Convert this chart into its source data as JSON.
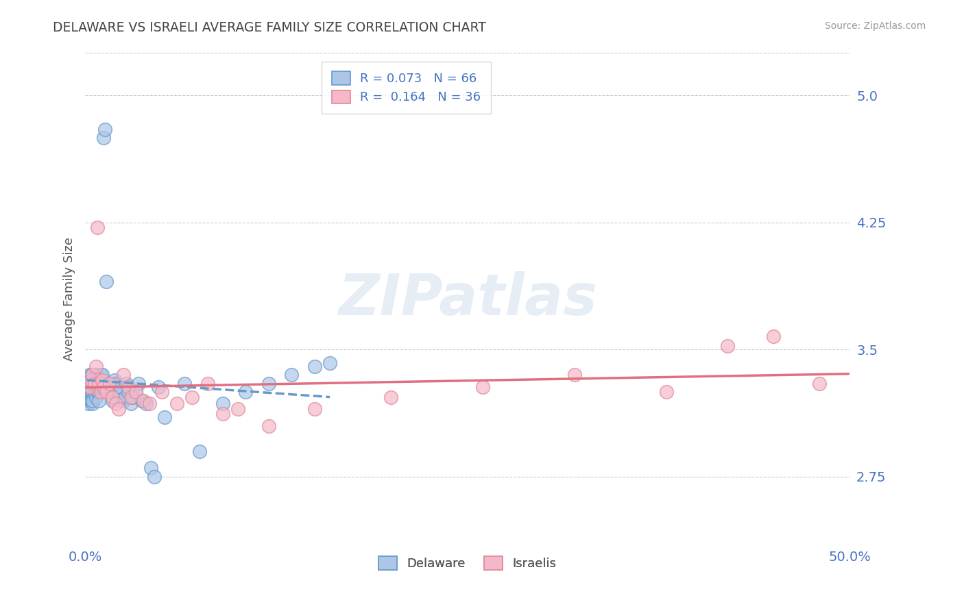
{
  "title": "DELAWARE VS ISRAELI AVERAGE FAMILY SIZE CORRELATION CHART",
  "source": "Source: ZipAtlas.com",
  "xlabel": "",
  "ylabel": "Average Family Size",
  "xlim": [
    0.0,
    0.5
  ],
  "ylim": [
    2.35,
    5.25
  ],
  "yticks": [
    2.75,
    3.5,
    4.25,
    5.0
  ],
  "xticks": [
    0.0,
    0.5
  ],
  "xtick_labels": [
    "0.0%",
    "50.0%"
  ],
  "background_color": "#ffffff",
  "grid_color": "#cccccc",
  "title_color": "#444444",
  "axis_label_color": "#555555",
  "tick_color": "#4472c4",
  "watermark": "ZIPatlas",
  "delaware_color": "#adc6e8",
  "israeli_color": "#f4b8c8",
  "delaware_edge": "#6699cc",
  "israeli_edge": "#e08898",
  "delaware_line_color": "#6699cc",
  "israeli_line_color": "#e07080",
  "R_delaware": 0.073,
  "N_delaware": 66,
  "R_israeli": 0.164,
  "N_israeli": 36,
  "legend_label_delaware": "Delaware",
  "legend_label_israeli": "Israelis",
  "delaware_x": [
    0.001,
    0.002,
    0.002,
    0.003,
    0.003,
    0.003,
    0.004,
    0.004,
    0.004,
    0.004,
    0.005,
    0.005,
    0.005,
    0.005,
    0.005,
    0.005,
    0.006,
    0.006,
    0.006,
    0.007,
    0.007,
    0.007,
    0.008,
    0.008,
    0.008,
    0.009,
    0.009,
    0.009,
    0.009,
    0.01,
    0.01,
    0.01,
    0.011,
    0.011,
    0.012,
    0.013,
    0.014,
    0.015,
    0.017,
    0.018,
    0.019,
    0.02,
    0.022,
    0.023,
    0.025,
    0.026,
    0.027,
    0.028,
    0.03,
    0.031,
    0.033,
    0.035,
    0.037,
    0.04,
    0.043,
    0.045,
    0.048,
    0.052,
    0.065,
    0.075,
    0.09,
    0.105,
    0.12,
    0.135,
    0.15,
    0.16
  ],
  "delaware_y": [
    3.3,
    3.18,
    3.25,
    3.35,
    3.28,
    3.2,
    3.32,
    3.2,
    3.35,
    3.25,
    3.3,
    3.22,
    3.3,
    3.25,
    3.18,
    3.2,
    3.32,
    3.28,
    3.25,
    3.35,
    3.3,
    3.22,
    3.32,
    3.25,
    3.3,
    3.28,
    3.32,
    3.25,
    3.2,
    3.3,
    3.35,
    3.28,
    3.3,
    3.35,
    4.75,
    4.8,
    3.9,
    3.3,
    3.25,
    3.2,
    3.32,
    3.3,
    3.25,
    3.28,
    3.2,
    3.22,
    3.3,
    3.25,
    3.18,
    3.22,
    3.25,
    3.3,
    3.2,
    3.18,
    2.8,
    2.75,
    3.28,
    3.1,
    3.3,
    2.9,
    3.18,
    3.25,
    3.3,
    3.35,
    3.4,
    3.42
  ],
  "israeli_x": [
    0.003,
    0.004,
    0.005,
    0.006,
    0.007,
    0.008,
    0.009,
    0.01,
    0.011,
    0.012,
    0.014,
    0.016,
    0.018,
    0.02,
    0.022,
    0.025,
    0.028,
    0.03,
    0.033,
    0.038,
    0.042,
    0.05,
    0.06,
    0.07,
    0.08,
    0.09,
    0.1,
    0.12,
    0.15,
    0.2,
    0.26,
    0.32,
    0.38,
    0.42,
    0.45,
    0.48
  ],
  "israeli_y": [
    3.28,
    3.32,
    3.35,
    3.3,
    3.4,
    4.22,
    3.3,
    3.25,
    3.32,
    3.28,
    3.25,
    3.3,
    3.22,
    3.18,
    3.15,
    3.35,
    3.28,
    3.22,
    3.25,
    3.2,
    3.18,
    3.25,
    3.18,
    3.22,
    3.3,
    3.12,
    3.15,
    3.05,
    3.15,
    3.22,
    3.28,
    3.35,
    3.25,
    3.52,
    3.58,
    3.3
  ]
}
